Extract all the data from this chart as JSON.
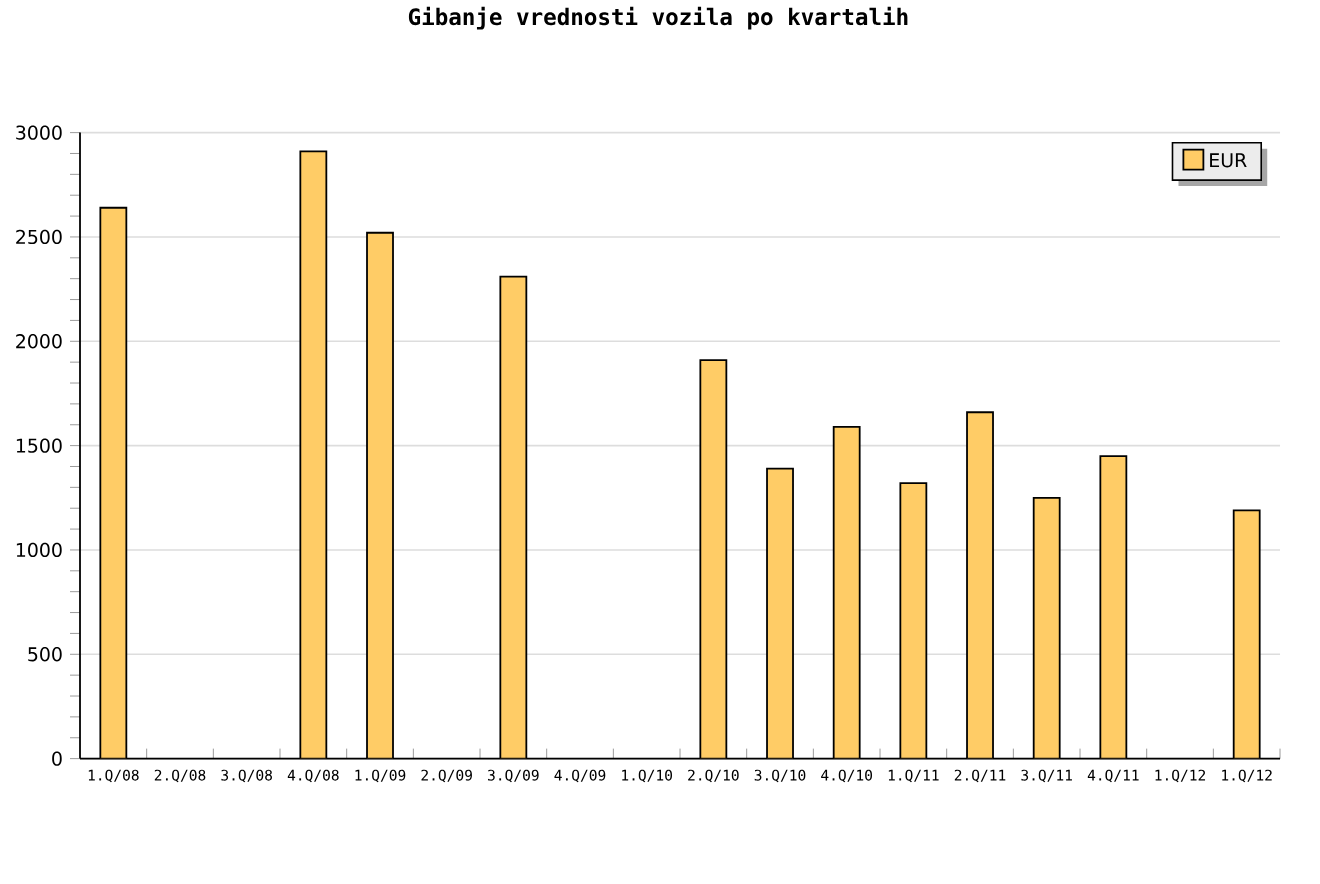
{
  "chart_data": {
    "type": "bar",
    "title": "Gibanje vrednosti vozila po kvartalih",
    "categories": [
      "1.Q/08",
      "2.Q/08",
      "3.Q/08",
      "4.Q/08",
      "1.Q/09",
      "2.Q/09",
      "3.Q/09",
      "4.Q/09",
      "1.Q/10",
      "2.Q/10",
      "3.Q/10",
      "4.Q/10",
      "1.Q/11",
      "2.Q/11",
      "3.Q/11",
      "4.Q/11",
      "1.Q/12",
      "1.Q/12"
    ],
    "series": [
      {
        "name": "EUR",
        "color": "#ffcc66",
        "values": [
          2640,
          null,
          null,
          2910,
          2520,
          null,
          2310,
          null,
          null,
          1910,
          1390,
          1590,
          1320,
          1660,
          1250,
          1450,
          null,
          1190
        ]
      }
    ],
    "ylim": [
      0,
      3000
    ],
    "yticks": [
      0,
      500,
      1000,
      1500,
      2000,
      2500,
      3000
    ],
    "grid": "y",
    "legend": "top right"
  }
}
